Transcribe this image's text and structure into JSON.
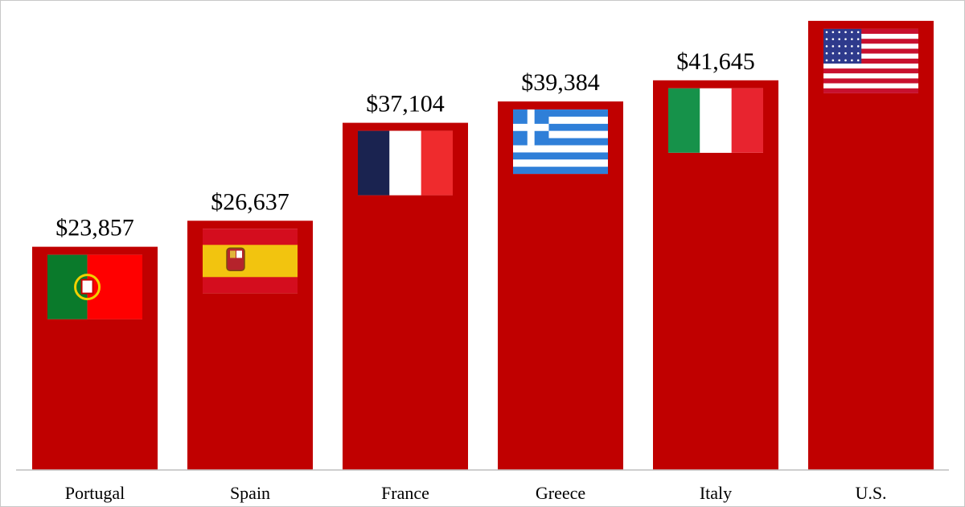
{
  "chart_data": {
    "type": "bar",
    "categories": [
      "Portugal",
      "Spain",
      "France",
      "Greece",
      "Italy",
      "U.S."
    ],
    "values": [
      23857,
      26637,
      37104,
      39384,
      41645,
      48000
    ],
    "value_labels": [
      "$23,857",
      "$26,637",
      "$37,104",
      "$39,384",
      "$41,645",
      ""
    ],
    "flags": [
      "portugal-flag",
      "spain-flag",
      "france-flag",
      "greece-flag",
      "italy-flag",
      "us-flag"
    ],
    "title": "",
    "xlabel": "",
    "ylabel": "",
    "ylim": [
      0,
      48000
    ],
    "grid": false,
    "legend": "none"
  },
  "colors": {
    "bar": "#c00000",
    "axis": "#bfbfbf",
    "border": "#c8c8c8",
    "portugal_green": "#0a7a2b",
    "portugal_red": "#ff0000",
    "spain_red": "#d40d1e",
    "spain_yellow": "#f2c40f",
    "france_blue": "#1a2350",
    "france_white": "#ffffff",
    "france_red": "#ef2b2d",
    "greece_blue": "#2f7fd8",
    "italy_green": "#16924a",
    "italy_red": "#e8242f",
    "us_red": "#c8102e",
    "us_blue": "#2e3a8c"
  }
}
